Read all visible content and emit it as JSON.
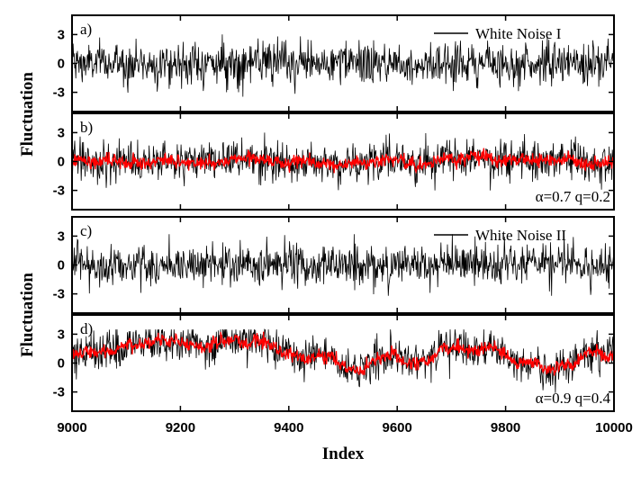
{
  "chart_data": {
    "type": "line",
    "xlabel": "Index",
    "ylabel": "Fluctuation",
    "xlim": [
      9000,
      10000
    ],
    "x_ticks": [
      9000,
      9200,
      9400,
      9600,
      9800,
      10000
    ],
    "x_tick_labels": [
      "9000",
      "9200",
      "9400",
      "9600",
      "9800",
      "10000"
    ],
    "y_ticks": [
      3,
      0,
      -3
    ],
    "y_tick_labels": [
      "3",
      "0",
      "-3"
    ],
    "ylim": [
      -5,
      5
    ],
    "grid": false,
    "colors": {
      "noise": "#000000",
      "filtered": "#ff0000"
    },
    "panels": [
      {
        "label": "a)",
        "legend": "White Noise I",
        "legend_position": "top-right",
        "annotation": "",
        "series": [
          {
            "role": "noise",
            "amplitude": 1.1,
            "spike_max": 3.6
          }
        ]
      },
      {
        "label": "b)",
        "legend": "",
        "annotation": "α=0.7  q=0.2",
        "annotation_position": "bottom-right",
        "series": [
          {
            "role": "noise",
            "amplitude": 1.0,
            "spike_max": 3.0
          },
          {
            "role": "filtered",
            "alpha": 0.7,
            "q": 0.2
          }
        ]
      },
      {
        "label": "c)",
        "legend": "White Noise II",
        "legend_position": "top-right",
        "annotation": "",
        "series": [
          {
            "role": "noise",
            "amplitude": 1.1,
            "spike_max": 3.2
          }
        ]
      },
      {
        "label": "d)",
        "legend": "",
        "annotation": "α=0.9  q=0.4",
        "annotation_position": "bottom-right",
        "series": [
          {
            "role": "noise",
            "amplitude": 1.0,
            "spike_max": 3.5
          },
          {
            "role": "filtered",
            "alpha": 0.9,
            "q": 0.4
          }
        ]
      }
    ]
  }
}
